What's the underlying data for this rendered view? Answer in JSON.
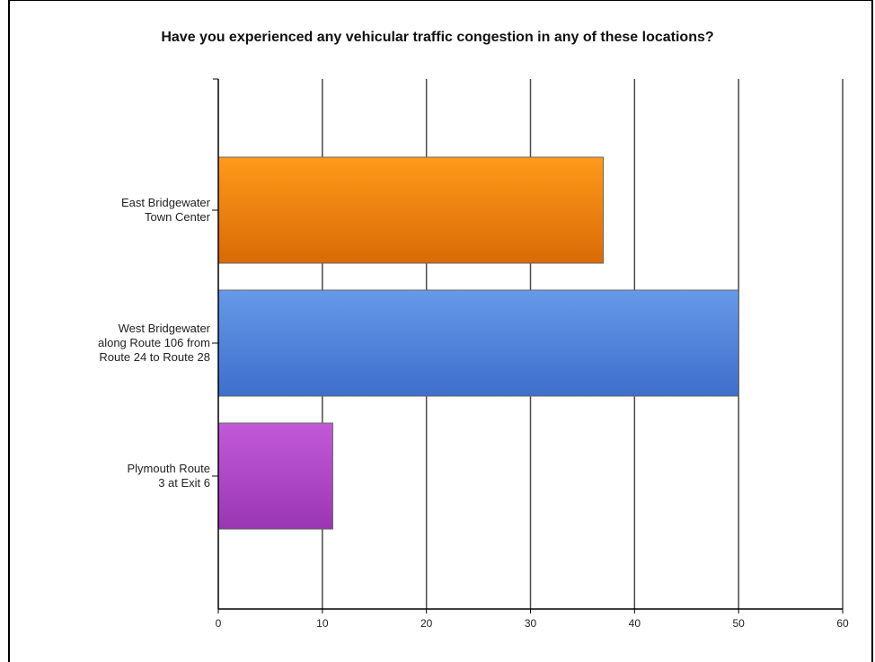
{
  "chart_data": {
    "type": "bar",
    "orientation": "horizontal",
    "title": "Have you experienced any vehicular traffic congestion in any of these locations?",
    "xlabel": "",
    "ylabel": "",
    "xlim": [
      0,
      60
    ],
    "xticks": [
      "0",
      "10",
      "20",
      "30",
      "40",
      "50",
      "60"
    ],
    "grid": true,
    "legend": "none",
    "categories": [
      [
        "East Bridgewater",
        "Town Center"
      ],
      [
        "West Bridgewater",
        "along Route 106 from",
        "Route 24 to Route 28"
      ],
      [
        "Plymouth Route",
        "3 at Exit 6"
      ]
    ],
    "values": [
      37,
      50,
      11
    ],
    "colors": [
      {
        "top": "#ff9a1a",
        "bottom": "#d96a06"
      },
      {
        "top": "#6699e8",
        "bottom": "#3d6fcc"
      },
      {
        "top": "#c25ad8",
        "bottom": "#9b36b3"
      }
    ]
  }
}
